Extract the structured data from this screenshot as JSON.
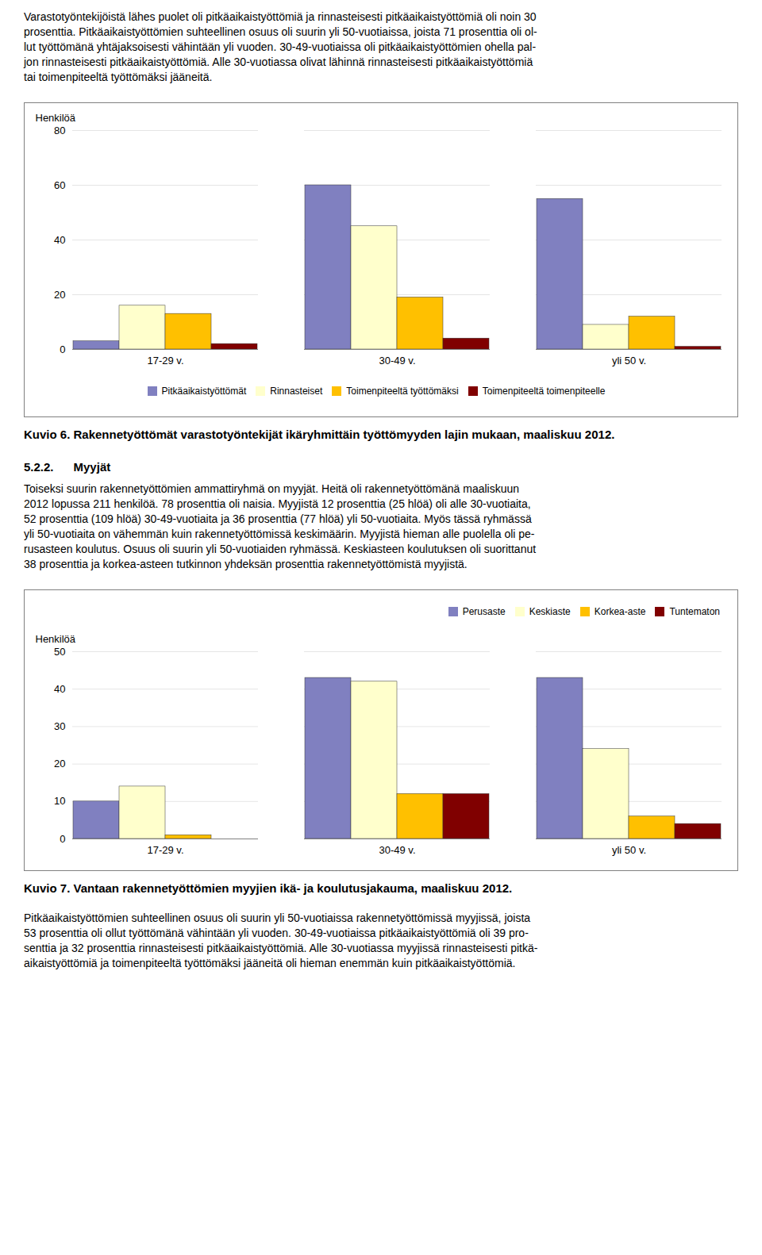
{
  "chart_data": [
    {
      "type": "bar",
      "title": "Kuvio 6. Rakennetyöttömät varastotyöntekijät ikäryhmittäin työttömyyden lajin mukaan, maaliskuu 2012.",
      "annotations": {
        "above": [
          "Varastotyöntekijöistä lähes puolet oli pitkäaikaistyöttömiä ja rinnasteisesti pitkäaikaistyöttömiä oli noin 30",
          "prosenttia. Pitkäaikaistyöttömien suhteellinen osuus oli suurin yli 50-vuotiaissa, joista 71 prosenttia oli ol-",
          "lut työttömänä yhtäjaksoisesti vähintään yli vuoden. 30-49-vuotiaissa oli pitkäaikaistyöttömien ohella pal-",
          "jon rinnasteisesti pitkäaikaistyöttömiä. Alle 30-vuotiassa olivat lähinnä rinnasteisesti pitkäaikaistyöttömiä",
          "tai toimenpiteeltä työttömäksi jääneitä."
        ]
      },
      "y_label": "Henkilöä",
      "categories": [
        "17-29 v.",
        "30-49 v.",
        "yli 50 v."
      ],
      "series": [
        {
          "name": "Pitkäaikaistyöttömät",
          "values": [
            3,
            60,
            55
          ],
          "color": "#8080C0"
        },
        {
          "name": "Rinnasteiset",
          "values": [
            16,
            45,
            9
          ],
          "color": "#FFFFCC"
        },
        {
          "name": "Toimenpiteeltä työttömäksi",
          "values": [
            13,
            19,
            12
          ],
          "color": "#FFC000"
        },
        {
          "name": "Toimenpiteeltä toimenpiteelle",
          "values": [
            2,
            4,
            1
          ],
          "color": "#800000"
        }
      ],
      "ylim": [
        0,
        80
      ],
      "yticks": [
        0,
        20,
        40,
        60,
        80
      ],
      "grid": true,
      "legend": "bottom"
    },
    {
      "type": "bar",
      "title": "Kuvio 7. Vantaan rakennetyöttömien myyjien ikä- ja koulutusjakauma, maaliskuu 2012.",
      "subtitle": "5.2.2.      Myyjät",
      "annotations": {
        "above": [
          "Toiseksi suurin rakennetyöttömien ammattiryhmä on myyjät. Heitä oli rakennetyöttömänä maaliskuun",
          "2012 lopussa 211 henkilöä. 78 prosenttia oli naisia. Myyjistä 12 prosenttia (25 hlöä) oli alle 30-vuotiaita,",
          "52 prosenttia (109 hlöä) 30-49-vuotiaita ja 36 prosenttia (77 hlöä) yli 50-vuotiaita. Myös tässä ryhmässä",
          "yli 50-vuotiaita on vähemmän kuin rakennetyöttömissä keskimäärin. Myyjistä hieman alle puolella oli pe-",
          "rusasteen koulutus. Osuus oli suurin yli 50-vuotiaiden ryhmässä. Keskiasteen koulutuksen oli suorittanut",
          "38 prosenttia ja korkea-asteen tutkinnon yhdeksän prosenttia rakennetyöttömistä myyjistä."
        ],
        "below": [
          "Pitkäaikaistyöttömien suhteellinen osuus oli suurin yli 50-vuotiaissa rakennetyöttömissä myyjissä, joista",
          "53 prosenttia oli ollut työttömänä vähintään yli vuoden. 30-49-vuotiaissa pitkäaikaistyöttömiä oli 39 pro-",
          "senttia ja 32 prosenttia rinnasteisesti pitkäaikaistyöttömiä. Alle 30-vuotiassa myyjissä rinnasteisesti pitkä-",
          "aikaistyöttömiä ja toimenpiteeltä työttömäksi jääneitä oli hieman enemmän kuin pitkäaikaistyöttömiä."
        ]
      },
      "y_label": "Henkilöä",
      "categories": [
        "17-29 v.",
        "30-49 v.",
        "yli 50 v."
      ],
      "series": [
        {
          "name": "Perusaste",
          "values": [
            10,
            43,
            43
          ],
          "color": "#8080C0"
        },
        {
          "name": "Keskiaste",
          "values": [
            14,
            42,
            24
          ],
          "color": "#FFFFCC"
        },
        {
          "name": "Korkea-aste",
          "values": [
            1,
            12,
            6
          ],
          "color": "#FFC000"
        },
        {
          "name": "Tuntematon",
          "values": [
            0,
            12,
            4
          ],
          "color": "#800000"
        }
      ],
      "ylim": [
        0,
        50
      ],
      "yticks": [
        0,
        10,
        20,
        30,
        40,
        50
      ],
      "grid": true,
      "legend": "upper right"
    }
  ]
}
